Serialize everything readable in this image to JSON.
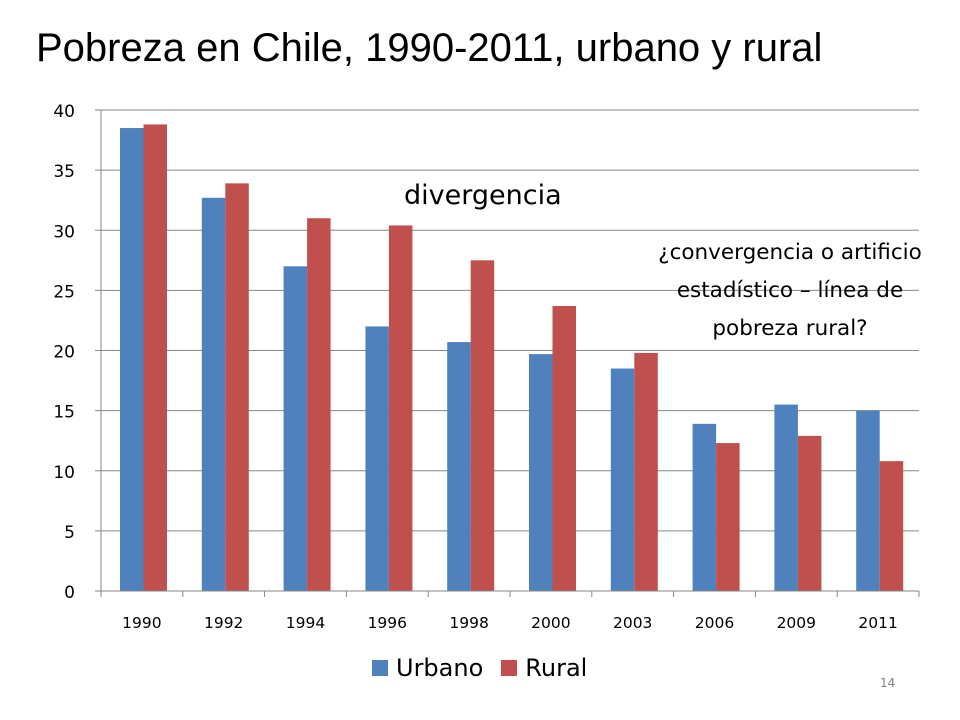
{
  "title": "Pobreza en Chile, 1990-2011, urbano y rural",
  "page_number": "14",
  "annotations": {
    "divergencia": "divergencia",
    "convergencia_lines": [
      "¿convergencia o artificio",
      "estadístico – línea de",
      "pobreza rural?"
    ]
  },
  "chart_data": {
    "type": "bar",
    "categories": [
      "1990",
      "1992",
      "1994",
      "1996",
      "1998",
      "2000",
      "2003",
      "2006",
      "2009",
      "2011"
    ],
    "series": [
      {
        "name": "Urbano",
        "color": "#4F81BD",
        "values": [
          38.5,
          32.7,
          27.0,
          22.0,
          20.7,
          19.7,
          18.5,
          13.9,
          15.5,
          15.0
        ]
      },
      {
        "name": "Rural",
        "color": "#C0504D",
        "values": [
          38.8,
          33.9,
          31.0,
          30.4,
          27.5,
          23.7,
          19.8,
          12.3,
          12.9,
          10.8
        ]
      }
    ],
    "ylim": [
      0,
      40
    ],
    "yticks": [
      "0",
      "5",
      "10",
      "15",
      "20",
      "25",
      "30",
      "35",
      "40"
    ],
    "grid": true,
    "legend": "bottom"
  }
}
